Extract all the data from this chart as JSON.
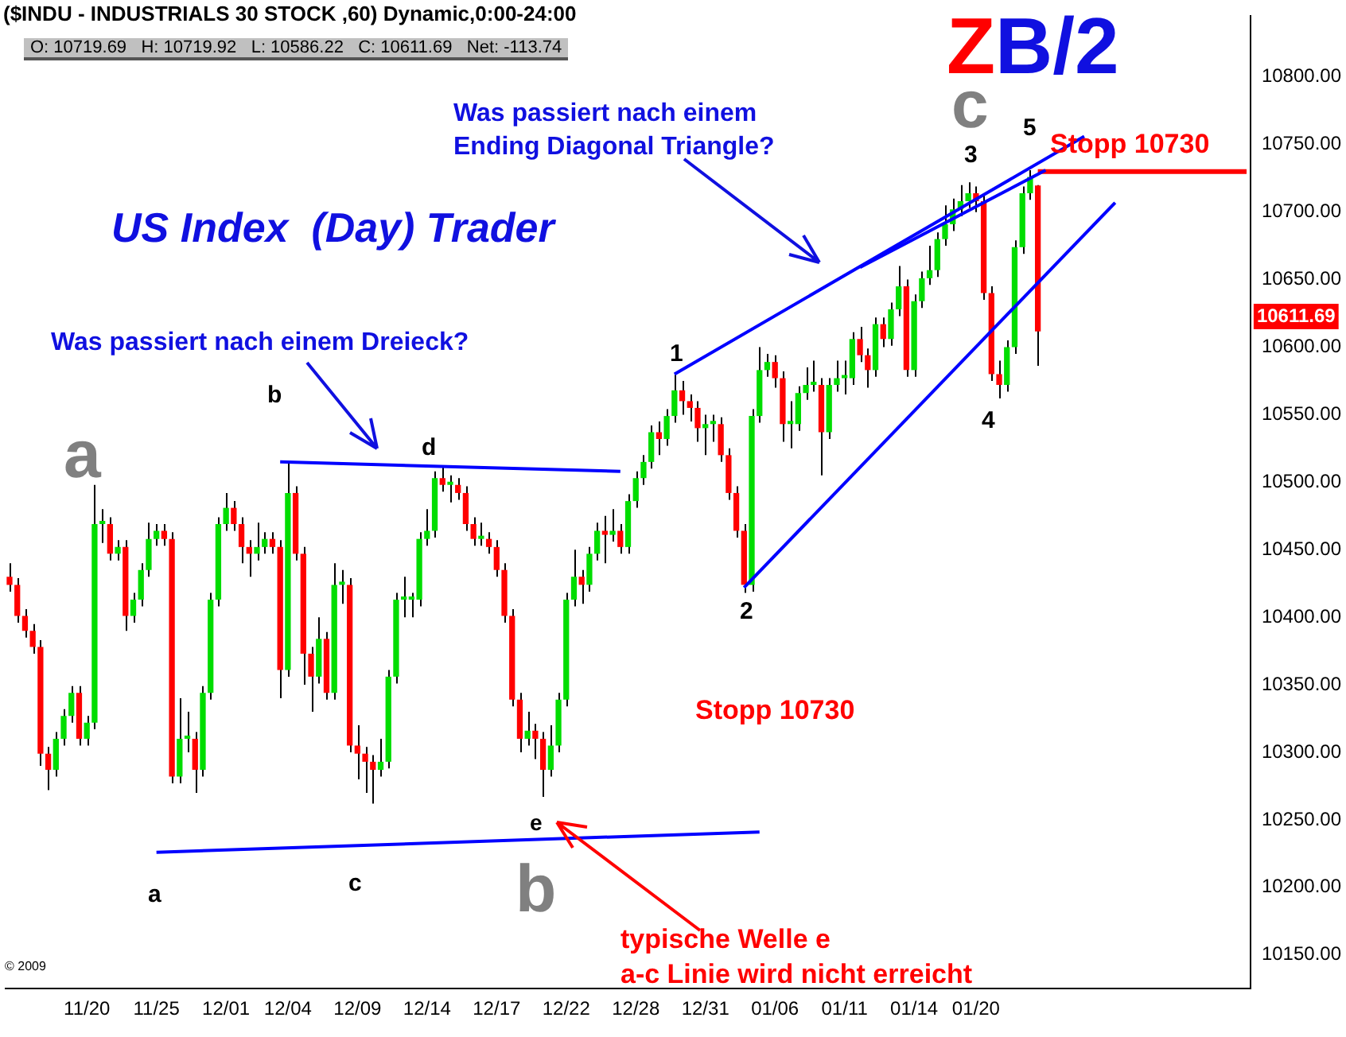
{
  "chart_data": {
    "type": "candlestick",
    "title": "($INDU - INDUSTRIALS 30 STOCK ,60) Dynamic,0:00-24:00",
    "subtitle": "O: 10719.69   H: 10719.92   L: 10586.22   C: 10611.69   Net: -113.74",
    "categories": [
      null,
      null,
      null,
      null,
      null,
      null,
      null,
      null,
      null,
      null,
      "11/20",
      null,
      null,
      null,
      null,
      null,
      null,
      null,
      null,
      "11/25",
      null,
      null,
      null,
      null,
      null,
      null,
      null,
      null,
      "12/01",
      null,
      null,
      null,
      null,
      null,
      null,
      null,
      "12/04",
      null,
      null,
      null,
      null,
      null,
      null,
      null,
      null,
      "12/09",
      null,
      null,
      null,
      null,
      null,
      null,
      null,
      null,
      "12/14",
      null,
      null,
      null,
      null,
      null,
      null,
      null,
      null,
      "12/17",
      null,
      null,
      null,
      null,
      null,
      null,
      null,
      null,
      "12/22",
      null,
      null,
      null,
      null,
      null,
      null,
      null,
      null,
      "12/28",
      null,
      null,
      null,
      null,
      null,
      null,
      null,
      null,
      "12/31",
      null,
      null,
      null,
      null,
      null,
      null,
      null,
      null,
      "01/06",
      null,
      null,
      null,
      null,
      null,
      null,
      null,
      null,
      "01/11",
      null,
      null,
      null,
      null,
      null,
      null,
      null,
      null,
      "01/14",
      null,
      null,
      null,
      null,
      null,
      null,
      null,
      "01/20",
      null,
      null,
      null,
      null,
      null,
      null,
      null,
      null,
      null,
      null,
      null,
      null,
      null,
      null,
      null,
      null,
      null,
      null,
      null,
      null,
      null,
      null,
      null,
      null,
      null,
      null,
      null,
      null,
      null,
      null,
      null,
      null,
      null,
      null,
      null
    ],
    "ohlc": [
      [
        10430,
        10440,
        10419,
        10424
      ],
      [
        10424,
        10429,
        10396,
        10401
      ],
      [
        10401,
        10406,
        10385,
        10390
      ],
      [
        10390,
        10395,
        10373,
        10378
      ],
      [
        10378,
        10383,
        10290,
        10299
      ],
      [
        10299,
        10304,
        10272,
        10287
      ],
      [
        10287,
        10315,
        10282,
        10310
      ],
      [
        10310,
        10332,
        10305,
        10327
      ],
      [
        10327,
        10349,
        10322,
        10344
      ],
      [
        10344,
        10349,
        10305,
        10310
      ],
      [
        10310,
        10327,
        10305,
        10322
      ],
      [
        10322,
        10498,
        10317,
        10469
      ],
      [
        10469,
        10480,
        10455,
        10469
      ],
      [
        10469,
        10474,
        10442,
        10447
      ],
      [
        10447,
        10457,
        10442,
        10452
      ],
      [
        10452,
        10457,
        10390,
        10401
      ],
      [
        10401,
        10418,
        10396,
        10413
      ],
      [
        10413,
        10440,
        10408,
        10435
      ],
      [
        10435,
        10470,
        10430,
        10458
      ],
      [
        10458,
        10469,
        10453,
        10464
      ],
      [
        10464,
        10469,
        10453,
        10458
      ],
      [
        10458,
        10463,
        10277,
        10282
      ],
      [
        10282,
        10340,
        10277,
        10310
      ],
      [
        10310,
        10330,
        10300,
        10310
      ],
      [
        10310,
        10315,
        10270,
        10287
      ],
      [
        10287,
        10349,
        10282,
        10344
      ],
      [
        10344,
        10418,
        10339,
        10413
      ],
      [
        10413,
        10474,
        10408,
        10469
      ],
      [
        10469,
        10492,
        10464,
        10481
      ],
      [
        10481,
        10486,
        10464,
        10469
      ],
      [
        10469,
        10474,
        10440,
        10452
      ],
      [
        10452,
        10457,
        10430,
        10447
      ],
      [
        10447,
        10470,
        10442,
        10452
      ],
      [
        10452,
        10463,
        10447,
        10458
      ],
      [
        10458,
        10463,
        10447,
        10452
      ],
      [
        10452,
        10457,
        10340,
        10361
      ],
      [
        10361,
        10515,
        10356,
        10492
      ],
      [
        10492,
        10497,
        10442,
        10447
      ],
      [
        10447,
        10452,
        10350,
        10373
      ],
      [
        10373,
        10378,
        10330,
        10356
      ],
      [
        10356,
        10400,
        10351,
        10384
      ],
      [
        10384,
        10389,
        10339,
        10344
      ],
      [
        10344,
        10440,
        10339,
        10424
      ],
      [
        10424,
        10435,
        10410,
        10424
      ],
      [
        10424,
        10429,
        10300,
        10305
      ],
      [
        10305,
        10320,
        10280,
        10299
      ],
      [
        10299,
        10304,
        10270,
        10293
      ],
      [
        10293,
        10298,
        10262,
        10287
      ],
      [
        10287,
        10310,
        10282,
        10293
      ],
      [
        10293,
        10361,
        10288,
        10356
      ],
      [
        10356,
        10418,
        10351,
        10413
      ],
      [
        10413,
        10430,
        10400,
        10413
      ],
      [
        10413,
        10418,
        10400,
        10413
      ],
      [
        10413,
        10463,
        10408,
        10458
      ],
      [
        10458,
        10480,
        10453,
        10464
      ],
      [
        10464,
        10508,
        10459,
        10503
      ],
      [
        10503,
        10512,
        10493,
        10498
      ],
      [
        10498,
        10505,
        10485,
        10498
      ],
      [
        10498,
        10503,
        10487,
        10492
      ],
      [
        10492,
        10497,
        10464,
        10469
      ],
      [
        10469,
        10474,
        10453,
        10458
      ],
      [
        10458,
        10470,
        10453,
        10458
      ],
      [
        10458,
        10463,
        10447,
        10452
      ],
      [
        10452,
        10457,
        10430,
        10435
      ],
      [
        10435,
        10440,
        10396,
        10401
      ],
      [
        10401,
        10406,
        10334,
        10339
      ],
      [
        10339,
        10344,
        10300,
        10310
      ],
      [
        10310,
        10330,
        10305,
        10316
      ],
      [
        10316,
        10321,
        10295,
        10310
      ],
      [
        10310,
        10315,
        10267,
        10287
      ],
      [
        10287,
        10320,
        10282,
        10305
      ],
      [
        10305,
        10344,
        10300,
        10339
      ],
      [
        10339,
        10418,
        10334,
        10413
      ],
      [
        10413,
        10450,
        10408,
        10430
      ],
      [
        10430,
        10435,
        10410,
        10424
      ],
      [
        10424,
        10452,
        10419,
        10447
      ],
      [
        10447,
        10470,
        10442,
        10464
      ],
      [
        10464,
        10475,
        10440,
        10461
      ],
      [
        10461,
        10480,
        10456,
        10464
      ],
      [
        10464,
        10469,
        10447,
        10452
      ],
      [
        10452,
        10491,
        10447,
        10486
      ],
      [
        10486,
        10508,
        10481,
        10503
      ],
      [
        10503,
        10520,
        10498,
        10515
      ],
      [
        10515,
        10542,
        10510,
        10537
      ],
      [
        10537,
        10545,
        10520,
        10532
      ],
      [
        10532,
        10554,
        10527,
        10549
      ],
      [
        10549,
        10581,
        10544,
        10568
      ],
      [
        10568,
        10575,
        10550,
        10560
      ],
      [
        10560,
        10565,
        10545,
        10555
      ],
      [
        10555,
        10560,
        10530,
        10540
      ],
      [
        10540,
        10550,
        10520,
        10543
      ],
      [
        10543,
        10550,
        10530,
        10543
      ],
      [
        10543,
        10548,
        10515,
        10520
      ],
      [
        10520,
        10525,
        10487,
        10492
      ],
      [
        10492,
        10497,
        10459,
        10464
      ],
      [
        10464,
        10469,
        10418,
        10424
      ],
      [
        10424,
        10554,
        10419,
        10549
      ],
      [
        10549,
        10600,
        10544,
        10583
      ],
      [
        10583,
        10595,
        10578,
        10589
      ],
      [
        10589,
        10594,
        10570,
        10577
      ],
      [
        10577,
        10582,
        10530,
        10543
      ],
      [
        10543,
        10560,
        10525,
        10543
      ],
      [
        10543,
        10571,
        10538,
        10566
      ],
      [
        10566,
        10585,
        10561,
        10572
      ],
      [
        10572,
        10590,
        10567,
        10572
      ],
      [
        10572,
        10577,
        10505,
        10537
      ],
      [
        10537,
        10577,
        10532,
        10572
      ],
      [
        10572,
        10590,
        10567,
        10577
      ],
      [
        10577,
        10590,
        10565,
        10577
      ],
      [
        10577,
        10611,
        10572,
        10606
      ],
      [
        10606,
        10615,
        10589,
        10594
      ],
      [
        10594,
        10599,
        10570,
        10583
      ],
      [
        10583,
        10622,
        10578,
        10617
      ],
      [
        10617,
        10622,
        10600,
        10606
      ],
      [
        10606,
        10633,
        10601,
        10628
      ],
      [
        10628,
        10660,
        10623,
        10645
      ],
      [
        10645,
        10650,
        10578,
        10583
      ],
      [
        10583,
        10639,
        10578,
        10634
      ],
      [
        10634,
        10656,
        10629,
        10651
      ],
      [
        10651,
        10675,
        10646,
        10657
      ],
      [
        10657,
        10685,
        10652,
        10680
      ],
      [
        10680,
        10705,
        10675,
        10691
      ],
      [
        10691,
        10710,
        10686,
        10702
      ],
      [
        10702,
        10720,
        10697,
        10708
      ],
      [
        10708,
        10722,
        10703,
        10714
      ],
      [
        10714,
        10719,
        10700,
        10708
      ],
      [
        10708,
        10713,
        10635,
        10640
      ],
      [
        10640,
        10645,
        10575,
        10580
      ],
      [
        10580,
        10590,
        10562,
        10572
      ],
      [
        10572,
        10605,
        10567,
        10600
      ],
      [
        10600,
        10679,
        10595,
        10674
      ],
      [
        10674,
        10719,
        10669,
        10714
      ],
      [
        10714,
        10731,
        10709,
        10726
      ],
      [
        10719.69,
        10719.92,
        10586.22,
        10611.69
      ],
      null,
      null,
      null,
      null,
      null,
      null,
      null,
      null,
      null,
      null,
      null,
      null,
      null,
      null,
      null,
      null,
      null,
      null,
      null,
      null,
      null,
      null,
      null,
      null,
      null,
      null,
      null
    ],
    "series": [
      {
        "type": "line",
        "color": "#0000ff",
        "values": [
          null,
          null,
          null,
          null,
          null,
          null,
          null,
          null,
          null,
          null,
          null,
          null,
          null,
          null,
          null,
          null,
          null,
          null,
          null,
          null,
          null,
          null,
          null,
          null,
          null,
          null,
          null,
          null,
          null,
          null,
          null,
          null,
          null,
          null,
          null,
          10515,
          null,
          null,
          null,
          null,
          null,
          null,
          null,
          null,
          null,
          null,
          null,
          null,
          null,
          null,
          null,
          null,
          null,
          null,
          null,
          null,
          null,
          null,
          null,
          null,
          null,
          null,
          null,
          null,
          null,
          null,
          null,
          null,
          null,
          null,
          null,
          null,
          null,
          null,
          null,
          null,
          null,
          null,
          null,
          10508,
          null,
          null,
          null,
          null,
          null,
          null,
          null,
          null,
          null,
          null,
          null,
          null,
          null,
          null,
          null,
          null,
          null,
          null,
          null,
          null,
          null,
          null,
          null,
          null,
          null,
          null,
          null,
          null,
          null,
          null,
          null,
          null,
          null,
          null,
          null,
          null,
          null,
          null,
          null,
          null,
          null,
          null,
          null,
          null,
          null,
          null,
          null,
          null,
          null,
          null,
          null,
          null,
          null,
          null,
          null,
          null,
          null,
          null,
          null,
          null,
          null,
          null,
          null,
          null,
          null,
          null,
          null,
          null,
          null,
          null,
          null,
          null,
          null,
          null,
          null,
          null,
          null,
          null,
          null,
          null,
          null
        ]
      },
      {
        "type": "line",
        "color": "#0000ff",
        "values": [
          null,
          null,
          null,
          null,
          null,
          null,
          null,
          null,
          null,
          null,
          null,
          null,
          null,
          null,
          null,
          null,
          null,
          null,
          null,
          10226,
          null,
          null,
          null,
          null,
          null,
          null,
          null,
          null,
          null,
          null,
          null,
          null,
          null,
          null,
          null,
          null,
          null,
          null,
          null,
          null,
          null,
          null,
          null,
          null,
          null,
          null,
          null,
          null,
          null,
          null,
          null,
          null,
          null,
          null,
          null,
          null,
          null,
          null,
          null,
          null,
          null,
          null,
          null,
          null,
          null,
          null,
          null,
          null,
          null,
          null,
          null,
          null,
          null,
          null,
          null,
          null,
          null,
          null,
          null,
          null,
          null,
          null,
          null,
          null,
          null,
          null,
          null,
          null,
          null,
          null,
          null,
          null,
          null,
          null,
          null,
          null,
          null,
          10241,
          null,
          null,
          null,
          null,
          null,
          null,
          null,
          null,
          null,
          null,
          null,
          null,
          null,
          null,
          null,
          null,
          null,
          null,
          null,
          null,
          null,
          null,
          null,
          null,
          null,
          null,
          null,
          null,
          null,
          null,
          null,
          null,
          null,
          null,
          null,
          null,
          null,
          null,
          null,
          null,
          null,
          null,
          null,
          null,
          null,
          null,
          null,
          null,
          null,
          null,
          null,
          null,
          null,
          null,
          null,
          null,
          null,
          null,
          null,
          null,
          null,
          null,
          null
        ]
      },
      {
        "type": "line",
        "color": "#0000ff",
        "values": [
          null,
          null,
          null,
          null,
          null,
          null,
          null,
          null,
          null,
          null,
          null,
          null,
          null,
          null,
          null,
          null,
          null,
          null,
          null,
          null,
          null,
          null,
          null,
          null,
          null,
          null,
          null,
          null,
          null,
          null,
          null,
          null,
          null,
          null,
          null,
          null,
          null,
          null,
          null,
          null,
          null,
          null,
          null,
          null,
          null,
          null,
          null,
          null,
          null,
          null,
          null,
          null,
          null,
          null,
          null,
          null,
          null,
          null,
          null,
          null,
          null,
          null,
          null,
          null,
          null,
          null,
          null,
          null,
          null,
          null,
          null,
          null,
          null,
          null,
          null,
          null,
          null,
          null,
          null,
          null,
          null,
          null,
          null,
          null,
          null,
          null,
          10580,
          null,
          null,
          null,
          null,
          null,
          null,
          null,
          null,
          null,
          null,
          null,
          null,
          null,
          null,
          null,
          null,
          null,
          null,
          null,
          null,
          null,
          null,
          null,
          null,
          null,
          null,
          null,
          null,
          null,
          null,
          null,
          null,
          null,
          null,
          null,
          null,
          null,
          null,
          null,
          null,
          null,
          null,
          null,
          null,
          null,
          null,
          null,
          null,
          null,
          null,
          null,
          null,
          10756,
          null,
          null,
          null,
          null,
          null,
          null,
          null,
          null,
          null,
          null,
          null,
          null,
          null,
          null,
          null,
          null,
          null,
          null,
          null,
          null,
          null
        ]
      },
      {
        "type": "line",
        "color": "#0000ff",
        "values": [
          null,
          null,
          null,
          null,
          null,
          null,
          null,
          null,
          null,
          null,
          null,
          null,
          null,
          null,
          null,
          null,
          null,
          null,
          null,
          null,
          null,
          null,
          null,
          null,
          null,
          null,
          null,
          null,
          null,
          null,
          null,
          null,
          null,
          null,
          null,
          null,
          null,
          null,
          null,
          null,
          null,
          null,
          null,
          null,
          null,
          null,
          null,
          null,
          null,
          null,
          null,
          null,
          null,
          null,
          null,
          null,
          null,
          null,
          null,
          null,
          null,
          null,
          null,
          null,
          null,
          null,
          null,
          null,
          null,
          null,
          null,
          null,
          null,
          null,
          null,
          null,
          null,
          null,
          null,
          null,
          null,
          null,
          null,
          null,
          null,
          null,
          null,
          null,
          null,
          null,
          null,
          null,
          null,
          null,
          null,
          null,
          null,
          null,
          null,
          null,
          null,
          null,
          null,
          null,
          null,
          null,
          null,
          null,
          null,
          null,
          10659,
          null,
          null,
          null,
          null,
          null,
          null,
          null,
          null,
          null,
          null,
          null,
          null,
          null,
          null,
          null,
          null,
          null,
          null,
          null,
          null,
          null,
          null,
          null,
          10731,
          null,
          null,
          null,
          null,
          null,
          null,
          null,
          null,
          null,
          null,
          null,
          null,
          null,
          null,
          null,
          null,
          null,
          null,
          null,
          null,
          null,
          null,
          null,
          null,
          null,
          null
        ]
      },
      {
        "type": "line",
        "color": "#0000ff",
        "values": [
          null,
          null,
          null,
          null,
          null,
          null,
          null,
          null,
          null,
          null,
          null,
          null,
          null,
          null,
          null,
          null,
          null,
          null,
          null,
          null,
          null,
          null,
          null,
          null,
          null,
          null,
          null,
          null,
          null,
          null,
          null,
          null,
          null,
          null,
          null,
          null,
          null,
          null,
          null,
          null,
          null,
          null,
          null,
          null,
          null,
          null,
          null,
          null,
          null,
          null,
          null,
          null,
          null,
          null,
          null,
          null,
          null,
          null,
          null,
          null,
          null,
          null,
          null,
          null,
          null,
          null,
          null,
          null,
          null,
          null,
          null,
          null,
          null,
          null,
          null,
          null,
          null,
          null,
          null,
          null,
          null,
          null,
          null,
          null,
          null,
          null,
          null,
          null,
          null,
          null,
          null,
          null,
          null,
          null,
          null,
          10422,
          null,
          null,
          null,
          null,
          null,
          null,
          null,
          null,
          null,
          null,
          null,
          null,
          null,
          null,
          null,
          null,
          null,
          null,
          null,
          null,
          null,
          null,
          null,
          null,
          null,
          null,
          null,
          null,
          null,
          null,
          null,
          null,
          null,
          null,
          null,
          null,
          null,
          null,
          null,
          null,
          null,
          null,
          null,
          null,
          null,
          null,
          null,
          10707,
          null,
          null,
          null,
          null,
          null,
          null,
          null,
          null,
          null,
          null,
          null,
          null,
          null,
          null,
          null,
          null,
          null
        ]
      },
      {
        "type": "line",
        "color": "#ff0000",
        "values": [
          null,
          null,
          null,
          null,
          null,
          null,
          null,
          null,
          null,
          null,
          null,
          null,
          null,
          null,
          null,
          null,
          null,
          null,
          null,
          null,
          null,
          null,
          null,
          null,
          null,
          null,
          null,
          null,
          null,
          null,
          null,
          null,
          null,
          null,
          null,
          null,
          null,
          null,
          null,
          null,
          null,
          null,
          null,
          null,
          null,
          null,
          null,
          null,
          null,
          null,
          null,
          null,
          null,
          null,
          null,
          null,
          null,
          null,
          null,
          null,
          null,
          null,
          null,
          null,
          null,
          null,
          null,
          null,
          null,
          null,
          null,
          null,
          null,
          null,
          null,
          null,
          null,
          null,
          null,
          null,
          null,
          null,
          null,
          null,
          null,
          null,
          null,
          null,
          null,
          null,
          null,
          null,
          null,
          null,
          null,
          null,
          null,
          null,
          null,
          null,
          null,
          null,
          null,
          null,
          null,
          null,
          null,
          null,
          null,
          null,
          null,
          null,
          null,
          null,
          null,
          null,
          null,
          null,
          null,
          null,
          null,
          null,
          null,
          null,
          null,
          null,
          null,
          null,
          null,
          null,
          null,
          null,
          null,
          10730,
          null,
          null,
          null,
          null,
          null,
          null,
          null,
          null,
          null,
          null,
          null,
          null,
          null,
          null,
          null,
          null,
          null,
          null,
          null,
          null,
          null,
          null,
          null,
          null,
          null,
          null,
          10730
        ]
      }
    ],
    "ylim": [
      10125,
      10845
    ],
    "yticks": [
      {
        "value": 10150,
        "label": "10150.00"
      },
      {
        "value": 10200,
        "label": "10200.00"
      },
      {
        "value": 10250,
        "label": "10250.00"
      },
      {
        "value": 10300,
        "label": "10300.00"
      },
      {
        "value": 10350,
        "label": "10350.00"
      },
      {
        "value": 10400,
        "label": "10400.00"
      },
      {
        "value": 10450,
        "label": "10450.00"
      },
      {
        "value": 10500,
        "label": "10500.00"
      },
      {
        "value": 10550,
        "label": "10550.00"
      },
      {
        "value": 10600,
        "label": "10600.00"
      },
      {
        "value": 10650,
        "label": "10650.00"
      },
      {
        "value": 10700,
        "label": "10700.00"
      },
      {
        "value": 10750,
        "label": "10750.00"
      },
      {
        "value": 10800,
        "label": "10800.00"
      }
    ],
    "annotations": [
      "US Index  (Day) Trader",
      "ZB/2",
      "Was passiert nach einem Dreieck?",
      "Was passiert nach einem",
      "Ending Diagonal Triangle?",
      "Stopp 10730",
      "typische Welle e",
      "a-c Linie wird nicht erreicht",
      "© 2009",
      "a",
      "b",
      "c",
      "d",
      "e",
      "1",
      "2",
      "3",
      "4",
      "5",
      "a",
      "b",
      "c",
      "10611.69",
      "Stopp 10730"
    ],
    "grid": false,
    "legend": false
  }
}
